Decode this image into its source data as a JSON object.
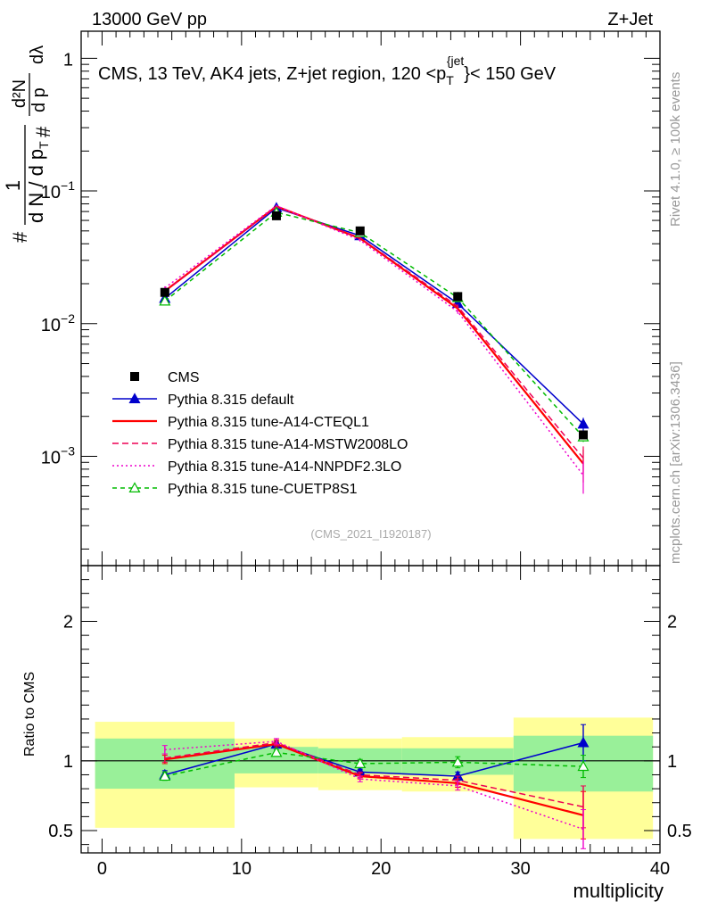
{
  "header": {
    "left": "13000 GeV pp",
    "right": "Z+Jet"
  },
  "side_labels": {
    "rivet": "Rivet 4.1.0, ≥ 100k events",
    "mcplots": "mcplots.cern.ch [arXiv:1306.3436]"
  },
  "chart_data": {
    "type": "line",
    "title": "CMS, 13 TeV, AK4 jets, Z+jet region, 120 <p_T^{jet}< 150 GeV",
    "title_parts": {
      "before": "CMS, 13 TeV, AK4 jets, Z+jet region, 120 <p",
      "sub": "T",
      "sup": "{jet",
      "after": "}< 150 GeV"
    },
    "analysis_id": "(CMS_2021_I1920187)",
    "xlabel": "multiplicity",
    "ylabel": "1/N dN/dp_T dλ",
    "ylabel_parts": {
      "hash": "#",
      "one": "1",
      "d_N": "d N / d p",
      "sub_T": "T",
      "hash2": "#",
      "frac_dN": "d²N",
      "dp": "d p",
      "dlambda": "dλ"
    },
    "ratio_ylabel": "Ratio to CMS",
    "xlim": [
      -1.5,
      40
    ],
    "ylim_main": [
      0.00015,
      1.6
    ],
    "ylim_ratio": [
      0.34,
      2.4
    ],
    "x_ticks": [
      0,
      10,
      20,
      30,
      40
    ],
    "x_tick_labels": [
      "0",
      "10",
      "20",
      "30",
      "40"
    ],
    "y_ticks_main": [
      0.001,
      0.01,
      0.1,
      1
    ],
    "y_tick_labels_main": [
      {
        "base": "10",
        "exp": "−3"
      },
      {
        "base": "10",
        "exp": "−2"
      },
      {
        "base": "10",
        "exp": "−1"
      },
      {
        "base": "1",
        "exp": ""
      }
    ],
    "y_ticks_ratio": [
      0.5,
      1,
      2
    ],
    "y_tick_labels_ratio": [
      "0.5",
      "1",
      "2"
    ],
    "bins": [
      [
        -0.5,
        9.5
      ],
      [
        9.5,
        15.5
      ],
      [
        15.5,
        21.5
      ],
      [
        21.5,
        29.5
      ],
      [
        29.5,
        39.5
      ]
    ],
    "x": [
      4.5,
      12.5,
      18.5,
      25.5,
      34.5
    ],
    "data": {
      "name": "CMS",
      "values": [
        0.0172,
        0.065,
        0.05,
        0.016,
        0.00145
      ],
      "band_inner": [
        [
          0.8,
          1.16
        ],
        [
          0.91,
          1.1
        ],
        [
          0.91,
          1.09
        ],
        [
          0.9,
          1.09
        ],
        [
          0.78,
          1.18
        ]
      ],
      "band_outer": [
        [
          0.52,
          1.28
        ],
        [
          0.81,
          1.16
        ],
        [
          0.79,
          1.16
        ],
        [
          0.78,
          1.17
        ],
        [
          0.44,
          1.31
        ]
      ]
    },
    "series": [
      {
        "name": "Pythia 8.315 default",
        "color": "#0000cc",
        "dash": "",
        "marker": "triangle-filled",
        "values": [
          0.0155,
          0.0745,
          0.046,
          0.0142,
          0.00175
        ],
        "ratio": [
          0.9,
          1.12,
          0.92,
          0.89,
          1.13
        ],
        "ratio_err": [
          0.03,
          0.02,
          0.02,
          0.03,
          0.13
        ]
      },
      {
        "name": "Pythia 8.315 tune-A14-CTEQL1",
        "color": "#ff0000",
        "dash": "",
        "marker": "none",
        "values": [
          0.0176,
          0.0765,
          0.044,
          0.013,
          0.00088
        ],
        "ratio": [
          1.01,
          1.12,
          0.89,
          0.84,
          0.61
        ],
        "ratio_err": [
          0.03,
          0.02,
          0.02,
          0.03,
          0.17
        ]
      },
      {
        "name": "Pythia 8.315 tune-A14-MSTW2008LO",
        "color": "#ee0055",
        "dash": "7,4",
        "marker": "none",
        "values": [
          0.0175,
          0.076,
          0.0443,
          0.0135,
          0.00097
        ],
        "ratio": [
          1.02,
          1.13,
          0.9,
          0.86,
          0.67
        ],
        "ratio_err": [
          0.03,
          0.02,
          0.02,
          0.03,
          0.15
        ]
      },
      {
        "name": "Pythia 8.315 tune-A14-NNPDF2.3LO",
        "color": "#ee00cc",
        "dash": "2,3",
        "marker": "none",
        "values": [
          0.0186,
          0.0775,
          0.0425,
          0.0123,
          0.00072
        ],
        "ratio": [
          1.08,
          1.14,
          0.87,
          0.82,
          0.51
        ],
        "ratio_err": [
          0.03,
          0.02,
          0.02,
          0.03,
          0.14
        ]
      },
      {
        "name": "Pythia 8.315 tune-CUETP8S1",
        "color": "#00bb00",
        "dash": "5,4",
        "marker": "triangle-open",
        "values": [
          0.0148,
          0.069,
          0.0485,
          0.0157,
          0.0014
        ],
        "ratio": [
          0.89,
          1.06,
          0.98,
          0.99,
          0.96
        ],
        "ratio_err": [
          0.03,
          0.02,
          0.03,
          0.04,
          0.08
        ]
      }
    ]
  }
}
